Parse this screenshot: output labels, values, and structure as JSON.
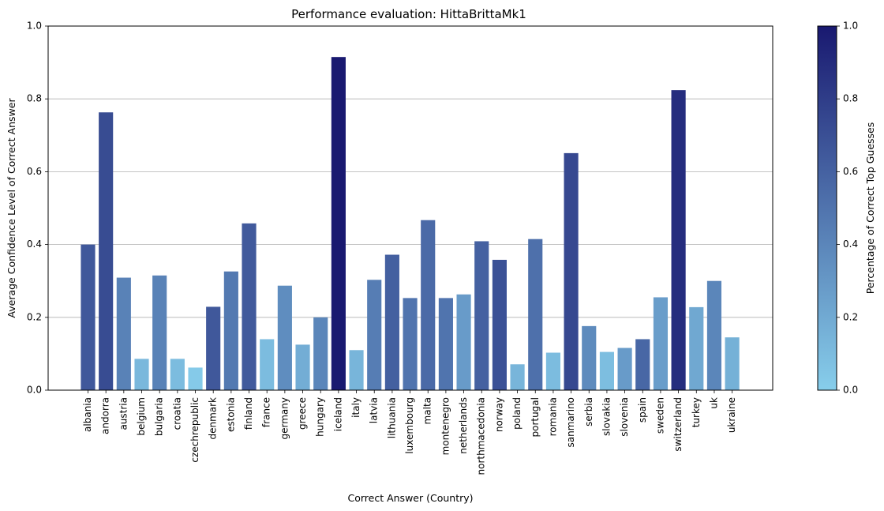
{
  "chart_data": {
    "type": "bar",
    "title": "Performance evaluation: HittaBrittaMk1",
    "xlabel": "Correct Answer (Country)",
    "ylabel": "Average Confidence Level of Correct Answer",
    "ylim": [
      0,
      1
    ],
    "yticks": [
      "0.0",
      "0.2",
      "0.4",
      "0.6",
      "0.8",
      "1.0"
    ],
    "grid": "y",
    "categories": [
      "albania",
      "andorra",
      "austria",
      "belgium",
      "bulgaria",
      "croatia",
      "czechrepublic",
      "denmark",
      "estonia",
      "finland",
      "france",
      "germany",
      "greece",
      "hungary",
      "iceland",
      "italy",
      "latvia",
      "lithuania",
      "luxembourg",
      "malta",
      "montenegro",
      "netherlands",
      "northmacedonia",
      "norway",
      "poland",
      "portugal",
      "romania",
      "sanmarino",
      "serbia",
      "slovakia",
      "slovenia",
      "spain",
      "sweden",
      "switzerland",
      "turkey",
      "uk",
      "ukraine"
    ],
    "values": [
      0.4,
      0.763,
      0.309,
      0.086,
      0.315,
      0.086,
      0.062,
      0.229,
      0.326,
      0.458,
      0.14,
      0.287,
      0.125,
      0.2,
      0.915,
      0.11,
      0.303,
      0.372,
      0.253,
      0.467,
      0.253,
      0.263,
      0.409,
      0.358,
      0.071,
      0.415,
      0.103,
      0.651,
      0.176,
      0.105,
      0.116,
      0.14,
      0.255,
      0.824,
      0.228,
      0.3,
      0.145
    ],
    "color_values": [
      0.65,
      0.72,
      0.42,
      0.12,
      0.42,
      0.1,
      0.02,
      0.65,
      0.47,
      0.64,
      0.1,
      0.36,
      0.18,
      0.4,
      1.0,
      0.14,
      0.45,
      0.61,
      0.5,
      0.55,
      0.5,
      0.28,
      0.6,
      0.69,
      0.14,
      0.52,
      0.1,
      0.74,
      0.37,
      0.09,
      0.28,
      0.57,
      0.27,
      0.89,
      0.21,
      0.4,
      0.16
    ],
    "colorbar": {
      "label": "Percentage of Correct Top Guesses",
      "range": [
        0,
        1
      ],
      "ticks": [
        "0.0",
        "0.2",
        "0.4",
        "0.6",
        "0.8",
        "1.0"
      ],
      "color_low": "#87ceeb",
      "color_high": "#191970"
    },
    "bar_colormap": "skyblue-to-midnightblue"
  }
}
